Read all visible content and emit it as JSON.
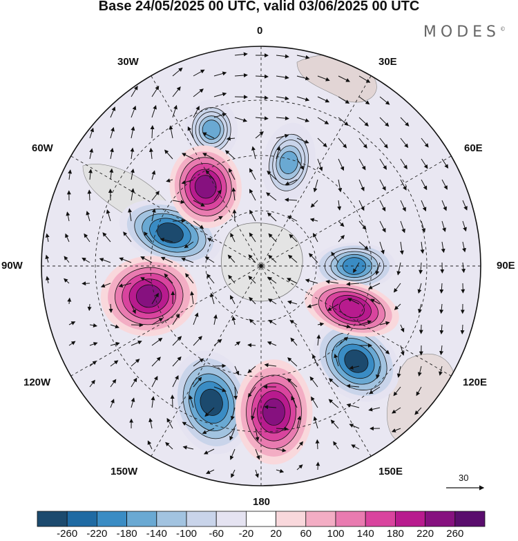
{
  "title": "Base 24/05/2025 00 UTC, valid 03/06/2025 00 UTC",
  "brand": {
    "text": "MODES",
    "mark": "©"
  },
  "axis_labels": {
    "n0": "0",
    "ne30": "30E",
    "ne60": "60E",
    "e90": "90E",
    "se120": "120E",
    "se150": "150E",
    "s180": "180",
    "sw150": "150W",
    "sw120": "120W",
    "w90": "90W",
    "nw60": "60W",
    "nw30": "30W"
  },
  "reference_vector": {
    "value": "30"
  },
  "colorbar": {
    "labels": [
      "-260",
      "-220",
      "-180",
      "-140",
      "-100",
      "-60",
      "-20",
      "20",
      "60",
      "100",
      "140",
      "180",
      "220",
      "260"
    ],
    "colors": [
      "#1c4a6e",
      "#1f6aa3",
      "#3a8cc4",
      "#6aa9d3",
      "#a2c3e0",
      "#c9d4ea",
      "#e5e3f1",
      "#ffffff",
      "#f9d8dc",
      "#f3adc4",
      "#e97bb0",
      "#d9449e",
      "#b81b8e",
      "#86117f",
      "#5a0d6d"
    ]
  },
  "chart_data": {
    "type": "heatmap",
    "projection": "south-polar-stereographic",
    "variable_levels": [
      -260,
      -220,
      -180,
      -140,
      -100,
      -60,
      -20,
      20,
      60,
      100,
      140,
      180,
      220,
      260
    ],
    "anomaly_centers": [
      {
        "name": "negative",
        "lon": "135E",
        "level": -260
      },
      {
        "name": "negative",
        "lon": "160W",
        "level": -260
      },
      {
        "name": "negative",
        "lon": "70W",
        "level": -260
      },
      {
        "name": "negative",
        "lon": "90E",
        "level": -180
      },
      {
        "name": "negative",
        "lon": "20W",
        "level": -140
      },
      {
        "name": "negative",
        "lon": "15E",
        "level": -140
      },
      {
        "name": "positive",
        "lon": "175E",
        "level": 260
      },
      {
        "name": "positive",
        "lon": "105W",
        "level": 260
      },
      {
        "name": "positive",
        "lon": "35W",
        "level": 260
      },
      {
        "name": "positive",
        "lon": "115E",
        "level": 220
      }
    ]
  }
}
